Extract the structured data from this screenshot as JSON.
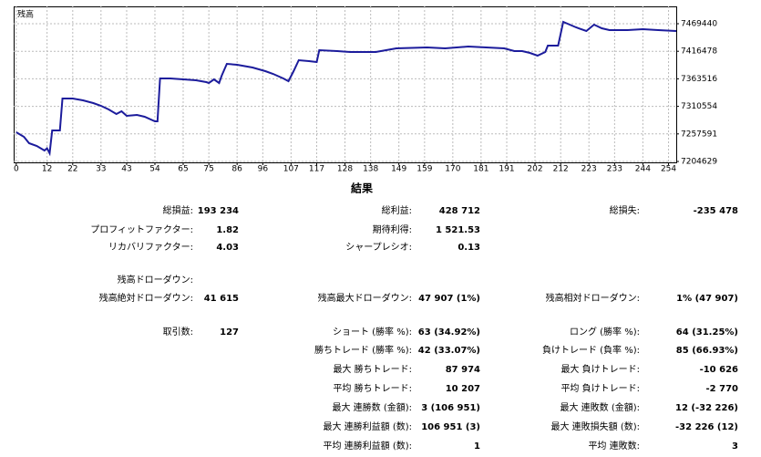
{
  "chart_data": {
    "type": "line",
    "grid": true,
    "xlim": [
      -1,
      257
    ],
    "ylim": [
      7202878,
      7502760
    ],
    "xticks": [
      0,
      12,
      22,
      33,
      43,
      54,
      65,
      75,
      86,
      96,
      107,
      117,
      128,
      138,
      149,
      159,
      170,
      181,
      191,
      202,
      212,
      223,
      233,
      244,
      254
    ],
    "yticks": [
      7204629,
      7257591,
      7310554,
      7363516,
      7416478,
      7469440
    ],
    "series": [
      {
        "name": "残高",
        "color": "#1c1c9c",
        "x": [
          0,
          3,
          5,
          8,
          11,
          12,
          13,
          14,
          17,
          18,
          22,
          26,
          30,
          33,
          36,
          39,
          41,
          43,
          47,
          50,
          54,
          55,
          56,
          60,
          65,
          70,
          74,
          75,
          77,
          79,
          80,
          82,
          86,
          92,
          97,
          100,
          104,
          106,
          108,
          110,
          114,
          117,
          118,
          125,
          130,
          140,
          148,
          160,
          167,
          176,
          183,
          190,
          194,
          197,
          200,
          203,
          206,
          207,
          211,
          213,
          218,
          222,
          225,
          228,
          231,
          238,
          244,
          250,
          257
        ],
        "values": [
          7260750,
          7251981,
          7239705,
          7234444,
          7225676,
          7230000,
          7220415,
          7264257,
          7264257,
          7325637,
          7325637,
          7322129,
          7316868,
          7311607,
          7304592,
          7295824,
          7301085,
          7292316,
          7294070,
          7290563,
          7281794,
          7281794,
          7364218,
          7364218,
          7362464,
          7360711,
          7357203,
          7355449,
          7362464,
          7355449,
          7369479,
          7392277,
          7390523,
          7385262,
          7378248,
          7372986,
          7364218,
          7358957,
          7378248,
          7399292,
          7397538,
          7395785,
          7418583,
          7416829,
          7415075,
          7415075,
          7422090,
          7423844,
          7422090,
          7425597,
          7423844,
          7422090,
          7416829,
          7416829,
          7413322,
          7408060,
          7415075,
          7427351,
          7427351,
          7472947,
          7462426,
          7455410,
          7467686,
          7460671,
          7457164,
          7457164,
          7458918,
          7457164,
          7455410
        ]
      }
    ]
  },
  "results": {
    "title": "結果",
    "rows": [
      [
        {
          "label": "総損益:",
          "value": "193 234"
        },
        {
          "label": "総利益:",
          "value": "428 712"
        },
        {
          "label": "総損失:",
          "value": "-235 478"
        }
      ],
      [
        {
          "label": "プロフィットファクター:",
          "value": "1.82"
        },
        {
          "label": "期待利得:",
          "value": "1 521.53"
        },
        null
      ],
      [
        {
          "label": "リカバリファクター:",
          "value": "4.03"
        },
        {
          "label": "シャープレシオ:",
          "value": "0.13"
        },
        null
      ],
      [
        {
          "label": "残高ドローダウン:"
        },
        null,
        null
      ],
      [
        {
          "label": "残高絶対ドローダウン:",
          "value": "41 615"
        },
        {
          "label": "残高最大ドローダウン:",
          "value": "47 907 (1%)"
        },
        {
          "label": "残高相対ドローダウン:",
          "value": "1% (47 907)"
        }
      ],
      [
        {
          "label": "取引数:",
          "value": "127"
        },
        {
          "label": "ショート (勝率 %):",
          "value": "63 (34.92%)"
        },
        {
          "label": "ロング (勝率 %):",
          "value": "64 (31.25%)"
        }
      ],
      [
        null,
        {
          "label": "勝ちトレード (勝率 %):",
          "value": "42 (33.07%)"
        },
        {
          "label": "負けトレード (負率 %):",
          "value": "85 (66.93%)"
        }
      ],
      [
        null,
        {
          "label": "最大 勝ちトレード:",
          "value": "87 974"
        },
        {
          "label": "最大 負けトレード:",
          "value": "-10 626"
        }
      ],
      [
        null,
        {
          "label": "平均 勝ちトレード:",
          "value": "10 207"
        },
        {
          "label": "平均 負けトレード:",
          "value": "-2 770"
        }
      ],
      [
        null,
        {
          "label": "最大 連勝数 (金額):",
          "value": "3 (106 951)"
        },
        {
          "label": "最大 連敗数 (金額):",
          "value": "12 (-32 226)"
        }
      ],
      [
        null,
        {
          "label": "最大 連勝利益額 (数):",
          "value": "106 951 (3)"
        },
        {
          "label": "最大 連敗損失額 (数):",
          "value": "-32 226 (12)"
        }
      ],
      [
        null,
        {
          "label": "平均 連勝利益額 (数):",
          "value": "1"
        },
        {
          "label": "平均 連敗数:",
          "value": "3"
        }
      ]
    ]
  }
}
